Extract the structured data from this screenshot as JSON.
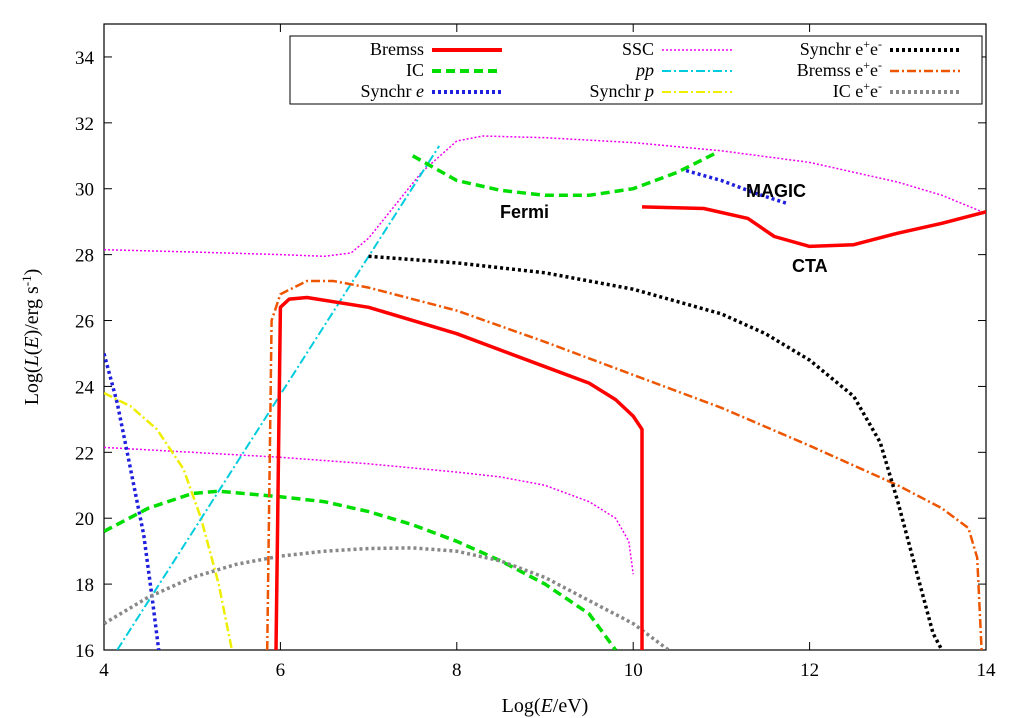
{
  "chart_data": {
    "type": "line",
    "title": "",
    "xlabel_pre": "Log(",
    "xlabel_var": "E",
    "xlabel_post": "/eV)",
    "ylabel_pre": "Log(",
    "ylabel_L": "L",
    "ylabel_mid1": "(",
    "ylabel_E": "E",
    "ylabel_mid2": ")/erg s",
    "ylabel_sup": "-1",
    "ylabel_post": ")",
    "xlim": [
      4,
      14
    ],
    "ylim": [
      16,
      35
    ],
    "xticks": [
      4,
      6,
      8,
      10,
      12,
      14
    ],
    "yticks": [
      16,
      18,
      20,
      22,
      24,
      26,
      28,
      30,
      32,
      34
    ],
    "legend_position": "top",
    "legend_entries": {
      "bremss": "Bremss",
      "ic": "IC",
      "synchr_e_pre": "Synchr ",
      "synchr_e_it": "e",
      "ssc": "SSC",
      "pp": "pp",
      "synchr_p_pre": "Synchr ",
      "synchr_p_it": "p",
      "synchr_ee": "Synchr e",
      "bremss_ee": "Bremss e",
      "ic_ee": "IC e",
      "plus": "+",
      "e": "e",
      "minus": "-"
    },
    "colors": {
      "bremss": "#ff0000",
      "ic": "#00dd00",
      "synchr_e": "#1f1fdd",
      "ssc": "#ee00ee",
      "pp": "#00ccdd",
      "synchr_p": "#eeee00",
      "synchr_ee": "#000000",
      "bremss_ee": "#ee5500",
      "ic_ee": "#888888",
      "sensitivity_fermi": "#00dd00",
      "sensitivity_magic": "#1f1fdd",
      "sensitivity_cta": "#ff0000"
    },
    "series": [
      {
        "key": "ssc",
        "name": "SSC",
        "style": "dotted",
        "points": [
          [
            4,
            22.15
          ],
          [
            5,
            22.0
          ],
          [
            6,
            21.85
          ],
          [
            7,
            21.65
          ],
          [
            8,
            21.4
          ],
          [
            8.5,
            21.25
          ],
          [
            9,
            21.0
          ],
          [
            9.5,
            20.5
          ],
          [
            9.8,
            20.0
          ],
          [
            9.95,
            19.3
          ],
          [
            10.0,
            18.3
          ]
        ]
      },
      {
        "key": "ssc",
        "name": "SSC (upper)",
        "style": "dotted",
        "points": [
          [
            4,
            28.15
          ],
          [
            5,
            28.08
          ],
          [
            6,
            28.0
          ],
          [
            6.5,
            27.95
          ],
          [
            6.8,
            28.05
          ],
          [
            7.0,
            28.5
          ],
          [
            7.3,
            29.5
          ],
          [
            7.6,
            30.5
          ],
          [
            8.0,
            31.45
          ],
          [
            8.3,
            31.6
          ],
          [
            9,
            31.55
          ],
          [
            10,
            31.4
          ],
          [
            11,
            31.15
          ],
          [
            12,
            30.8
          ],
          [
            13,
            30.2
          ],
          [
            13.5,
            29.8
          ],
          [
            14,
            29.25
          ]
        ]
      },
      {
        "key": "synchr_e",
        "name": "Synchr e",
        "style": "dotted",
        "points": [
          [
            4,
            25.0
          ],
          [
            4.15,
            23.5
          ],
          [
            4.3,
            21.5
          ],
          [
            4.45,
            19.5
          ],
          [
            4.55,
            17.5
          ],
          [
            4.62,
            16.0
          ]
        ]
      },
      {
        "key": "synchr_p",
        "name": "Synchr p",
        "style": "dashdot",
        "points": [
          [
            4,
            23.8
          ],
          [
            4.3,
            23.4
          ],
          [
            4.6,
            22.7
          ],
          [
            4.9,
            21.5
          ],
          [
            5.1,
            20.0
          ],
          [
            5.3,
            18.0
          ],
          [
            5.45,
            16.0
          ]
        ]
      },
      {
        "key": "pp",
        "name": "pp",
        "style": "dashdot",
        "points": [
          [
            4.15,
            16.0
          ],
          [
            7.8,
            31.3
          ]
        ]
      },
      {
        "key": "ic",
        "name": "IC",
        "style": "dashed",
        "points": [
          [
            4,
            19.6
          ],
          [
            4.5,
            20.3
          ],
          [
            5,
            20.75
          ],
          [
            5.3,
            20.82
          ],
          [
            6,
            20.65
          ],
          [
            6.5,
            20.5
          ],
          [
            7,
            20.2
          ],
          [
            7.5,
            19.8
          ],
          [
            8,
            19.3
          ],
          [
            8.5,
            18.7
          ],
          [
            9,
            18.0
          ],
          [
            9.5,
            17.1
          ],
          [
            9.8,
            16.0
          ]
        ]
      },
      {
        "key": "ic_ee",
        "name": "IC e+e-",
        "style": "dotted",
        "points": [
          [
            4,
            16.8
          ],
          [
            4.5,
            17.6
          ],
          [
            5,
            18.2
          ],
          [
            5.5,
            18.6
          ],
          [
            6,
            18.85
          ],
          [
            6.5,
            19.0
          ],
          [
            7,
            19.08
          ],
          [
            7.5,
            19.1
          ],
          [
            8,
            19.0
          ],
          [
            8.5,
            18.7
          ],
          [
            9,
            18.2
          ],
          [
            9.5,
            17.5
          ],
          [
            10,
            16.8
          ],
          [
            10.4,
            16.0
          ]
        ]
      },
      {
        "key": "bremss_ee",
        "name": "Bremss e+e-",
        "style": "dashdot",
        "points": [
          [
            5.85,
            16.0
          ],
          [
            5.9,
            26.0
          ],
          [
            6.0,
            26.8
          ],
          [
            6.3,
            27.2
          ],
          [
            6.6,
            27.2
          ],
          [
            7,
            27.0
          ],
          [
            8,
            26.3
          ],
          [
            9,
            25.35
          ],
          [
            10,
            24.35
          ],
          [
            11,
            23.35
          ],
          [
            12,
            22.2
          ],
          [
            13,
            21.0
          ],
          [
            13.5,
            20.3
          ],
          [
            13.8,
            19.7
          ],
          [
            13.9,
            18.8
          ],
          [
            13.95,
            16.0
          ]
        ]
      },
      {
        "key": "bremss",
        "name": "Bremss",
        "style": "solid",
        "points": [
          [
            5.95,
            16.0
          ],
          [
            6.0,
            26.4
          ],
          [
            6.1,
            26.65
          ],
          [
            6.3,
            26.7
          ],
          [
            7,
            26.4
          ],
          [
            8,
            25.6
          ],
          [
            9,
            24.6
          ],
          [
            9.5,
            24.1
          ],
          [
            9.8,
            23.6
          ],
          [
            10.0,
            23.1
          ],
          [
            10.1,
            22.7
          ],
          [
            10.1,
            16.0
          ]
        ]
      },
      {
        "key": "synchr_ee",
        "name": "Synchr e+e-",
        "style": "dotted",
        "points": [
          [
            7,
            27.95
          ],
          [
            8,
            27.75
          ],
          [
            9,
            27.45
          ],
          [
            10,
            26.95
          ],
          [
            11,
            26.2
          ],
          [
            11.5,
            25.6
          ],
          [
            12,
            24.8
          ],
          [
            12.5,
            23.7
          ],
          [
            12.8,
            22.3
          ],
          [
            13.0,
            20.5
          ],
          [
            13.2,
            18.5
          ],
          [
            13.4,
            16.5
          ],
          [
            13.5,
            16.0
          ]
        ]
      }
    ],
    "sensitivity_curves": [
      {
        "key": "sensitivity_fermi",
        "name": "Fermi",
        "style": "dashed",
        "points": [
          [
            7.5,
            31.0
          ],
          [
            8,
            30.25
          ],
          [
            8.5,
            29.95
          ],
          [
            9,
            29.8
          ],
          [
            9.5,
            29.8
          ],
          [
            10,
            30.0
          ],
          [
            10.5,
            30.5
          ],
          [
            10.95,
            31.1
          ]
        ]
      },
      {
        "key": "sensitivity_magic",
        "name": "MAGIC",
        "style": "dotted",
        "points": [
          [
            10.6,
            30.55
          ],
          [
            11,
            30.25
          ],
          [
            11.4,
            29.85
          ],
          [
            11.75,
            29.55
          ]
        ]
      },
      {
        "key": "sensitivity_cta",
        "name": "CTA",
        "style": "solid",
        "points": [
          [
            10.1,
            29.45
          ],
          [
            10.8,
            29.4
          ],
          [
            11.3,
            29.1
          ],
          [
            11.6,
            28.55
          ],
          [
            12,
            28.25
          ],
          [
            12.5,
            28.3
          ],
          [
            13,
            28.65
          ],
          [
            13.5,
            28.95
          ],
          [
            14,
            29.3
          ]
        ]
      }
    ],
    "annotations": {
      "fermi": "Fermi",
      "magic": "MAGIC",
      "cta": "CTA"
    }
  }
}
